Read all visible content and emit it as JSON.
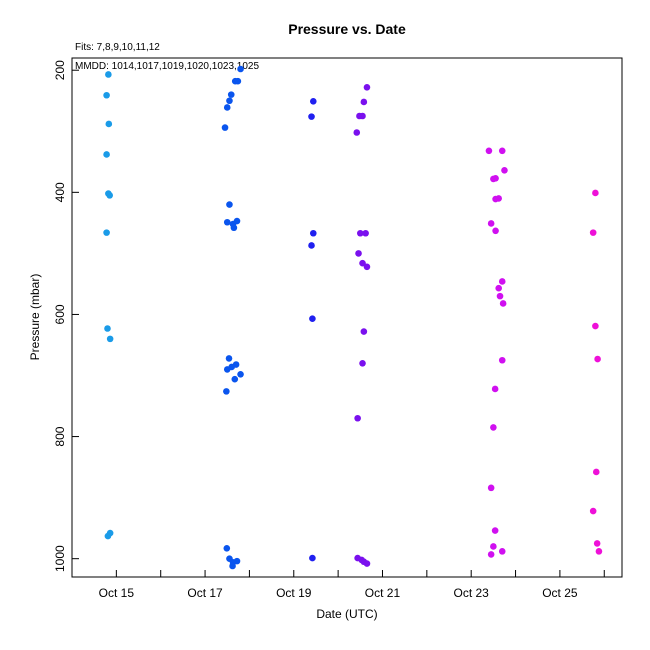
{
  "chart_data": {
    "type": "scatter",
    "title": "Pressure  vs. Date",
    "annotations": [
      "Fits: 7,8,9,10,11,12",
      "MMDD: 1014,1017,1019,1020,1023,1025"
    ],
    "xlabel": "Date (UTC)",
    "ylabel": "Pressure (mbar)",
    "x_unit": "days in October (UTC)",
    "xlim": [
      14.0,
      26.4
    ],
    "ylim": [
      1030,
      180
    ],
    "y_inverted": true,
    "grid": false,
    "x_tick_labels": [
      "Oct 15",
      "Oct 17",
      "Oct 19",
      "Oct 21",
      "Oct 23",
      "Oct 25"
    ],
    "x_tick_values": [
      15,
      17,
      19,
      21,
      23,
      25
    ],
    "x_minor_ticks": [
      16,
      18,
      20,
      22,
      24,
      26
    ],
    "y_tick_labels": [
      "200",
      "400",
      "600",
      "800",
      "1000"
    ],
    "y_tick_values": [
      200,
      400,
      600,
      800,
      1000
    ],
    "series": [
      {
        "color": "#1a9be8",
        "points": [
          [
            14.82,
            207
          ],
          [
            14.78,
            241
          ],
          [
            14.83,
            288
          ],
          [
            14.78,
            338
          ],
          [
            14.82,
            402
          ],
          [
            14.85,
            405
          ],
          [
            14.78,
            466
          ],
          [
            14.8,
            623
          ],
          [
            14.86,
            640
          ],
          [
            14.86,
            958
          ],
          [
            14.81,
            963
          ]
        ]
      },
      {
        "color": "#0a55ee",
        "points": [
          [
            17.8,
            198
          ],
          [
            17.68,
            218
          ],
          [
            17.74,
            218
          ],
          [
            17.59,
            240
          ],
          [
            17.55,
            250
          ],
          [
            17.5,
            261
          ],
          [
            17.45,
            294
          ],
          [
            17.55,
            420
          ],
          [
            17.5,
            449
          ],
          [
            17.72,
            447
          ],
          [
            17.63,
            452
          ],
          [
            17.65,
            458
          ],
          [
            17.54,
            672
          ],
          [
            17.7,
            682
          ],
          [
            17.6,
            686
          ],
          [
            17.5,
            690
          ],
          [
            17.8,
            698
          ],
          [
            17.67,
            706
          ],
          [
            17.48,
            726
          ],
          [
            17.49,
            983
          ],
          [
            17.55,
            1000
          ],
          [
            17.72,
            1004
          ],
          [
            17.63,
            1006
          ],
          [
            17.62,
            1012
          ]
        ]
      },
      {
        "color": "#2020f0",
        "points": [
          [
            19.44,
            251
          ],
          [
            19.4,
            276
          ],
          [
            19.44,
            467
          ],
          [
            19.4,
            487
          ],
          [
            19.42,
            607
          ],
          [
            19.42,
            999
          ]
        ]
      },
      {
        "color": "#7a10ee",
        "points": [
          [
            20.65,
            228
          ],
          [
            20.58,
            252
          ],
          [
            20.48,
            275
          ],
          [
            20.55,
            275
          ],
          [
            20.42,
            302
          ],
          [
            20.5,
            467
          ],
          [
            20.62,
            467
          ],
          [
            20.46,
            500
          ],
          [
            20.55,
            516
          ],
          [
            20.65,
            522
          ],
          [
            20.58,
            628
          ],
          [
            20.55,
            680
          ],
          [
            20.44,
            770
          ],
          [
            20.44,
            999
          ],
          [
            20.53,
            1002
          ],
          [
            20.58,
            1005
          ],
          [
            20.65,
            1008
          ]
        ]
      },
      {
        "color": "#d010f0",
        "points": [
          [
            23.4,
            332
          ],
          [
            23.7,
            332
          ],
          [
            23.75,
            364
          ],
          [
            23.55,
            377
          ],
          [
            23.5,
            378
          ],
          [
            23.62,
            410
          ],
          [
            23.55,
            411
          ],
          [
            23.45,
            451
          ],
          [
            23.55,
            463
          ],
          [
            23.7,
            546
          ],
          [
            23.62,
            557
          ],
          [
            23.65,
            570
          ],
          [
            23.72,
            582
          ],
          [
            23.7,
            675
          ],
          [
            23.54,
            722
          ],
          [
            23.5,
            785
          ],
          [
            23.45,
            884
          ],
          [
            23.54,
            954
          ],
          [
            23.5,
            980
          ],
          [
            23.7,
            988
          ],
          [
            23.45,
            993
          ]
        ]
      },
      {
        "color": "#ee10d8",
        "points": [
          [
            25.8,
            401
          ],
          [
            25.75,
            466
          ],
          [
            25.8,
            619
          ],
          [
            25.85,
            673
          ],
          [
            25.82,
            858
          ],
          [
            25.75,
            922
          ],
          [
            25.84,
            975
          ],
          [
            25.88,
            988
          ]
        ]
      }
    ]
  }
}
